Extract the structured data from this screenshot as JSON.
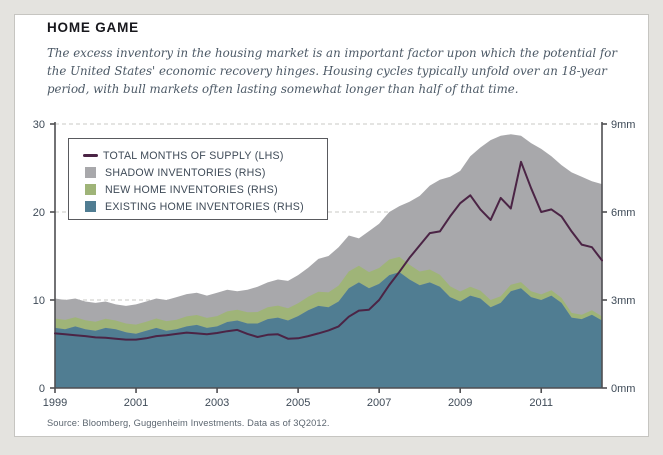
{
  "header": {
    "title": "HOME GAME",
    "description": "The excess inventory in the housing market is an important factor upon which the potential for the United States' economic recovery hinges. Housing cycles typically unfold over an 18-year period, with bull markets often lasting somewhat longer than half of that time."
  },
  "footer": {
    "source": "Source: Bloomberg, Guggenheim Investments. Data as of 3Q2012."
  },
  "colors": {
    "background": "#e4e3df",
    "card": "#ffffff",
    "axis_line": "#4f4f52",
    "grid_line": "#c9c9c6",
    "axis_text": "#3e4a57"
  },
  "chart_data": {
    "type": "area",
    "title": "HOME GAME",
    "x_start": 1999,
    "x_step": 0.25,
    "x_end": 2012.5,
    "x_tick_years": [
      1999,
      2001,
      2003,
      2005,
      2007,
      2009,
      2011
    ],
    "x_tick_labels": [
      "1999",
      "2001",
      "2003",
      "2005",
      "2007",
      "2009",
      "2011"
    ],
    "left_axis": {
      "range": [
        0,
        30
      ],
      "ticks": [
        0,
        10,
        20,
        30
      ],
      "tick_labels": [
        "0",
        "10",
        "20",
        "30"
      ]
    },
    "right_axis": {
      "range": [
        0,
        9
      ],
      "ticks": [
        0,
        3,
        6,
        9
      ],
      "tick_labels": [
        "0mm",
        "3mm",
        "6mm",
        "9mm"
      ]
    },
    "grid": "dashed horizontal at 10/20/30 (3/6/9mm)",
    "legend_position": "top-left",
    "series": [
      {
        "name": "TOTAL MONTHS OF SUPPLY (LHS)",
        "type": "line",
        "axis": "left",
        "color": "#4b2445",
        "values": [
          6.2,
          6.1,
          6.0,
          5.9,
          5.75,
          5.7,
          5.6,
          5.5,
          5.5,
          5.65,
          5.9,
          6.0,
          6.15,
          6.3,
          6.2,
          6.1,
          6.25,
          6.45,
          6.6,
          6.15,
          5.8,
          6.05,
          6.1,
          5.6,
          5.65,
          5.9,
          6.2,
          6.55,
          7.0,
          8.1,
          8.8,
          8.9,
          10.0,
          11.7,
          13.2,
          14.8,
          16.2,
          17.6,
          17.8,
          19.5,
          21.0,
          21.9,
          20.3,
          19.1,
          21.6,
          20.4,
          25.7,
          22.7,
          20.0,
          20.3,
          19.5,
          17.8,
          16.3,
          16.0,
          14.5
        ]
      },
      {
        "name": "SHADOW INVENTORIES (RHS)",
        "type": "area",
        "axis": "right",
        "stack_order": 3,
        "color": "#a8a8ab",
        "values": [
          0.68,
          0.68,
          0.64,
          0.64,
          0.64,
          0.59,
          0.55,
          0.6,
          0.69,
          0.69,
          0.68,
          0.72,
          0.77,
          0.76,
          0.76,
          0.76,
          0.8,
          0.74,
          0.63,
          0.77,
          0.86,
          0.85,
          0.89,
          0.93,
          0.96,
          0.99,
          1.12,
          1.24,
          1.31,
          1.23,
          0.93,
          1.4,
          1.51,
          1.62,
          1.73,
          2.15,
          2.58,
          2.86,
          3.24,
          3.73,
          4.11,
          4.45,
          4.88,
          5.45,
          5.47,
          5.13,
          4.99,
          5.05,
          4.96,
          4.57,
          4.53,
          4.79,
          4.7,
          4.4,
          4.51
        ]
      },
      {
        "name": "NEW HOME INVENTORIES (RHS)",
        "type": "area",
        "axis": "right",
        "stack_order": 2,
        "color": "#9fb478",
        "values": [
          0.32,
          0.32,
          0.31,
          0.31,
          0.31,
          0.31,
          0.3,
          0.3,
          0.31,
          0.31,
          0.32,
          0.33,
          0.33,
          0.34,
          0.34,
          0.34,
          0.35,
          0.36,
          0.37,
          0.38,
          0.39,
          0.4,
          0.41,
          0.42,
          0.44,
          0.46,
          0.48,
          0.51,
          0.54,
          0.57,
          0.57,
          0.55,
          0.54,
          0.53,
          0.52,
          0.5,
          0.47,
          0.44,
          0.41,
          0.37,
          0.34,
          0.3,
          0.27,
          0.25,
          0.23,
          0.22,
          0.21,
          0.2,
          0.19,
          0.18,
          0.17,
          0.16,
          0.15,
          0.15,
          0.14
        ]
      },
      {
        "name": "EXISTING HOME INVENTORIES (RHS)",
        "type": "area",
        "axis": "right",
        "stack_order": 1,
        "color": "#507d92",
        "values": [
          2.05,
          2.0,
          2.1,
          2.0,
          1.95,
          2.05,
          2.0,
          1.9,
          1.85,
          1.95,
          2.05,
          1.95,
          2.0,
          2.1,
          2.15,
          2.05,
          2.1,
          2.25,
          2.3,
          2.2,
          2.2,
          2.35,
          2.4,
          2.3,
          2.45,
          2.65,
          2.8,
          2.75,
          2.95,
          3.4,
          3.6,
          3.4,
          3.55,
          3.85,
          3.95,
          3.7,
          3.5,
          3.6,
          3.45,
          3.1,
          2.95,
          3.15,
          3.05,
          2.75,
          2.9,
          3.3,
          3.4,
          3.1,
          3.0,
          3.15,
          2.9,
          2.4,
          2.35,
          2.5,
          2.3
        ]
      }
    ]
  }
}
